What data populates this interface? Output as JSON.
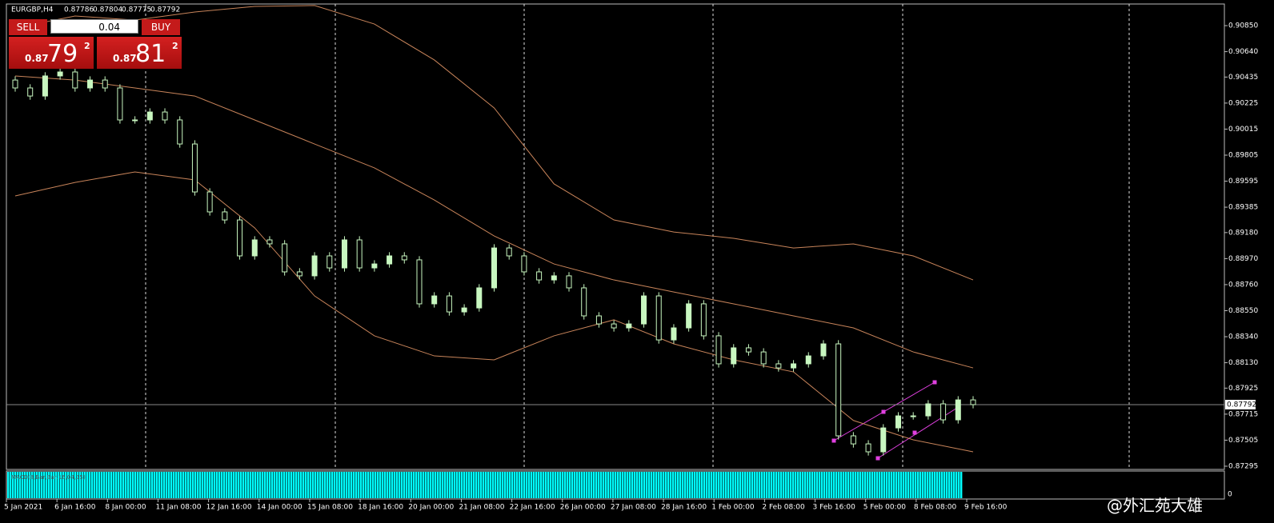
{
  "header": {
    "symbol": "EURGBP,H4",
    "ohlc": [
      0.87786,
      0.87804,
      0.87775,
      0.87792
    ]
  },
  "trade_panel": {
    "sell": "SELL",
    "buy": "BUY",
    "lot": "0.04",
    "sell_price": [
      "0.87",
      "79",
      "2"
    ],
    "buy_price": [
      "0.87",
      "81",
      "2"
    ]
  },
  "indicator_label": "MACD(8,Bar,Bar,16,04,35)",
  "sub_axis_label": "0",
  "watermark": "@外汇苑大雄",
  "chart_data": {
    "type": "candlestick",
    "bull_color": "#c8f7c0",
    "bear_color": "#000000",
    "wick_color": "#c8f7c0",
    "categories": [
      "5 Jan 2021",
      "6 Jan 16:00",
      "8 Jan 00:00",
      "11 Jan 08:00",
      "12 Jan 16:00",
      "14 Jan 00:00",
      "15 Jan 08:00",
      "18 Jan 16:00",
      "20 Jan 00:00",
      "21 Jan 08:00",
      "22 Jan 16:00",
      "26 Jan 00:00",
      "27 Jan 08:00",
      "28 Jan 16:00",
      "1 Feb 00:00",
      "2 Feb 08:00",
      "3 Feb 16:00",
      "5 Feb 00:00",
      "8 Feb 08:00",
      "9 Feb 16:00"
    ],
    "open": [
      0.90411,
      0.90347,
      0.90282,
      0.90444,
      0.90476,
      0.90347,
      0.90411,
      0.90347,
      0.90089,
      0.90089,
      0.90153,
      0.90089,
      0.89895,
      0.89508,
      0.89347,
      0.89282,
      0.88992,
      0.89121,
      0.89089,
      0.88863,
      0.88831,
      0.88992,
      0.88895,
      0.89121,
      0.88895,
      0.88927,
      0.88992,
      0.8896,
      0.88605,
      0.88669,
      0.8854,
      0.88572,
      0.88734,
      0.89056,
      0.88992,
      0.88863,
      0.88798,
      0.88831,
      0.88734,
      0.88508,
      0.88443,
      0.88411,
      0.88443,
      0.88669,
      0.88314,
      0.88411,
      0.88605,
      0.88347,
      0.88121,
      0.8825,
      0.88217,
      0.88121,
      0.88088,
      0.88121,
      0.88185,
      0.88282,
      0.8754,
      0.87475,
      0.87411,
      0.87604,
      0.87701,
      0.87701,
      0.87798,
      0.87669,
      0.8783
    ],
    "high": [
      0.90441,
      0.90377,
      0.90474,
      0.90506,
      0.90506,
      0.90441,
      0.90441,
      0.90377,
      0.90119,
      0.90183,
      0.90183,
      0.90119,
      0.89925,
      0.89538,
      0.89377,
      0.89312,
      0.89151,
      0.89151,
      0.89119,
      0.88893,
      0.89022,
      0.89022,
      0.89151,
      0.89151,
      0.88957,
      0.89022,
      0.89022,
      0.8899,
      0.88699,
      0.88699,
      0.88602,
      0.88764,
      0.89086,
      0.89086,
      0.89022,
      0.88893,
      0.88861,
      0.88861,
      0.88764,
      0.88538,
      0.88473,
      0.88473,
      0.88699,
      0.88699,
      0.88441,
      0.88635,
      0.88635,
      0.88377,
      0.8828,
      0.8828,
      0.88247,
      0.88151,
      0.88151,
      0.88215,
      0.88312,
      0.88312,
      0.8757,
      0.87505,
      0.87634,
      0.87731,
      0.87731,
      0.87828,
      0.87828,
      0.8786,
      0.8786
    ],
    "low": [
      0.90317,
      0.90252,
      0.90252,
      0.90414,
      0.90317,
      0.90317,
      0.90317,
      0.90059,
      0.90059,
      0.90059,
      0.90059,
      0.89865,
      0.89478,
      0.89317,
      0.89252,
      0.88962,
      0.88962,
      0.89059,
      0.88833,
      0.88801,
      0.88801,
      0.88865,
      0.88865,
      0.88865,
      0.88865,
      0.88897,
      0.8893,
      0.88575,
      0.88575,
      0.8851,
      0.8851,
      0.88542,
      0.88704,
      0.88962,
      0.88833,
      0.88768,
      0.88768,
      0.88704,
      0.88478,
      0.88413,
      0.88381,
      0.88381,
      0.88413,
      0.88284,
      0.88284,
      0.88381,
      0.88317,
      0.88091,
      0.88091,
      0.88187,
      0.88091,
      0.88058,
      0.88058,
      0.88091,
      0.88155,
      0.8751,
      0.87445,
      0.87381,
      0.87381,
      0.87574,
      0.87671,
      0.87671,
      0.87639,
      0.87639,
      0.87762
    ],
    "close": [
      0.90347,
      0.90282,
      0.90444,
      0.90476,
      0.90347,
      0.90411,
      0.90347,
      0.90089,
      0.90089,
      0.90153,
      0.90089,
      0.89895,
      0.89508,
      0.89347,
      0.89282,
      0.88992,
      0.89121,
      0.89089,
      0.88863,
      0.88831,
      0.88992,
      0.88895,
      0.89121,
      0.88895,
      0.88927,
      0.88992,
      0.8896,
      0.88605,
      0.88669,
      0.8854,
      0.88572,
      0.88734,
      0.89056,
      0.88992,
      0.88863,
      0.88798,
      0.88831,
      0.88734,
      0.88508,
      0.88443,
      0.88411,
      0.88443,
      0.88669,
      0.88314,
      0.88411,
      0.88605,
      0.88347,
      0.88121,
      0.8825,
      0.88217,
      0.88121,
      0.88088,
      0.88121,
      0.88185,
      0.88282,
      0.8754,
      0.87475,
      0.87411,
      0.87604,
      0.87701,
      0.87701,
      0.87798,
      0.87669,
      0.8783,
      0.87792
    ],
    "bands_x": [
      0,
      4,
      8,
      12,
      16,
      20,
      24,
      28,
      32,
      36,
      40,
      44,
      48,
      52,
      56,
      60,
      64
    ],
    "bands": [
      {
        "color": "#c8845a",
        "values": [
          0.90831,
          0.90928,
          0.90895,
          0.9096,
          0.91005,
          0.91012,
          0.90863,
          0.90573,
          0.90186,
          0.89573,
          0.89282,
          0.89185,
          0.89134,
          0.89056,
          0.89089,
          0.88992,
          0.88798
        ]
      },
      {
        "color": "#c8845a",
        "values": [
          0.90444,
          0.90411,
          0.90347,
          0.90282,
          0.90089,
          0.89895,
          0.89702,
          0.89443,
          0.89153,
          0.88927,
          0.88798,
          0.88701,
          0.88605,
          0.88508,
          0.88411,
          0.88217,
          0.88088
        ]
      },
      {
        "color": "#c8845a",
        "values": [
          0.89476,
          0.89585,
          0.89669,
          0.89605,
          0.89218,
          0.88669,
          0.88347,
          0.88185,
          0.88153,
          0.88347,
          0.88476,
          0.88282,
          0.88153,
          0.88056,
          0.87664,
          0.87508,
          0.87411
        ]
      }
    ],
    "last_price": 0.87792,
    "ylim": [
      0.87269,
      0.910245
    ],
    "yticks": [
      {
        "value": 0.9085,
        "label": "0.90850"
      },
      {
        "value": 0.9064,
        "label": "0.90640"
      },
      {
        "value": 0.90435,
        "label": "0.90435"
      },
      {
        "value": 0.90225,
        "label": "0.90225"
      },
      {
        "value": 0.90015,
        "label": "0.90015"
      },
      {
        "value": 0.89805,
        "label": "0.89805"
      },
      {
        "value": 0.89595,
        "label": "0.89595"
      },
      {
        "value": 0.89385,
        "label": "0.89385"
      },
      {
        "value": 0.8918,
        "label": "0.89180"
      },
      {
        "value": 0.8897,
        "label": "0.88970"
      },
      {
        "value": 0.8876,
        "label": "0.88760"
      },
      {
        "value": 0.8855,
        "label": "0.88550"
      },
      {
        "value": 0.8834,
        "label": "0.88340"
      },
      {
        "value": 0.8813,
        "label": "0.88130"
      },
      {
        "value": 0.87925,
        "label": "0.87925"
      },
      {
        "value": 0.87715,
        "label": "0.87715"
      },
      {
        "value": 0.87505,
        "label": "0.87505"
      },
      {
        "value": 0.87295,
        "label": "0.87295"
      }
    ],
    "grid": false
  }
}
